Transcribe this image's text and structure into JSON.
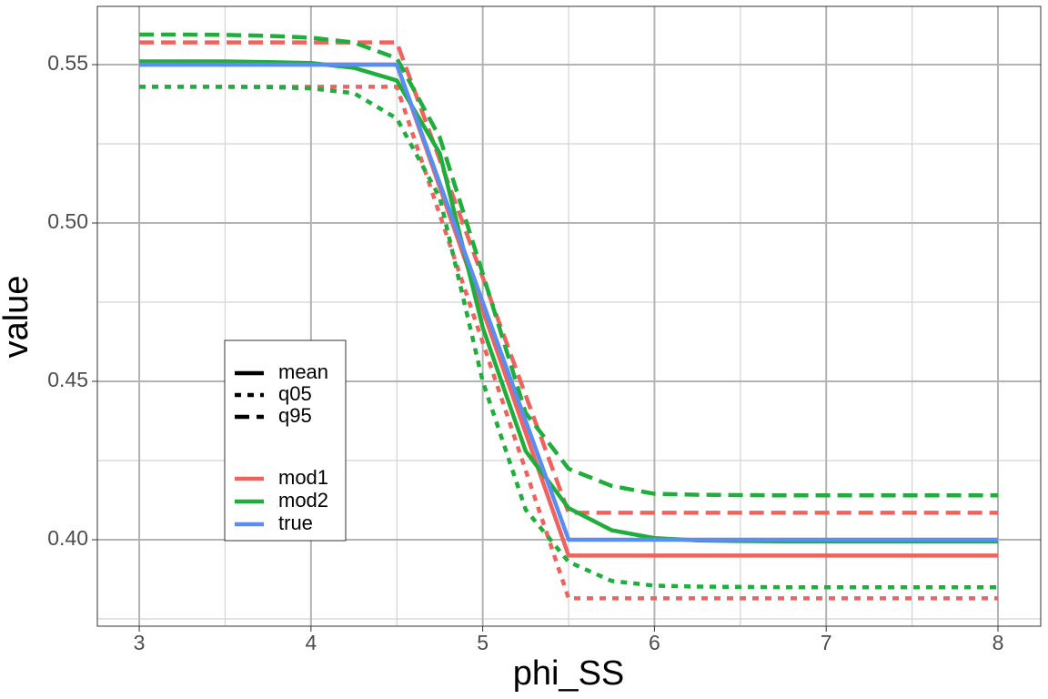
{
  "chart_data": {
    "type": "line",
    "x_label": "phi_SS",
    "y_label": "value",
    "x": [
      3,
      3.25,
      3.5,
      3.75,
      4,
      4.25,
      4.5,
      4.75,
      5,
      5.25,
      5.5,
      5.75,
      6,
      6.25,
      6.5,
      6.75,
      7,
      7.25,
      7.5,
      7.75,
      8
    ],
    "xlim": [
      2.756,
      8.249
    ],
    "ylim": [
      0.3727,
      0.5684
    ],
    "xticks": [
      3,
      4,
      5,
      6,
      7,
      8
    ],
    "yticks": [
      {
        "value": 0.4,
        "label": "0.40"
      },
      {
        "value": 0.45,
        "label": "0.45"
      },
      {
        "value": 0.5,
        "label": "0.50"
      },
      {
        "value": 0.55,
        "label": "0.55"
      }
    ],
    "grid": true,
    "legend": {
      "linetype": [
        {
          "name": "mean",
          "dash": "solid"
        },
        {
          "name": "q05",
          "dash": "dotted"
        },
        {
          "name": "q95",
          "dash": "dashed"
        }
      ],
      "color": [
        {
          "name": "mod1",
          "color": "#F0625E"
        },
        {
          "name": "mod2",
          "color": "#1FAE3B"
        },
        {
          "name": "true",
          "color": "#5A8DF2"
        }
      ]
    },
    "series": [
      {
        "name": "mod1",
        "linetype": "q95",
        "values": [
          0.557,
          0.557,
          0.557,
          0.557,
          0.557,
          0.557,
          0.557,
          0.5199,
          0.4828,
          0.4456,
          0.4085,
          0.4085,
          0.4085,
          0.4085,
          0.4085,
          0.4085,
          0.4085,
          0.4085,
          0.4085,
          0.4085,
          0.4085
        ]
      },
      {
        "name": "mod1",
        "linetype": "q05",
        "values": [
          0.543,
          0.543,
          0.543,
          0.543,
          0.543,
          0.543,
          0.543,
          0.5026,
          0.4623,
          0.4219,
          0.3815,
          0.3815,
          0.3815,
          0.3815,
          0.3815,
          0.3815,
          0.3815,
          0.3815,
          0.3815,
          0.3815,
          0.3815
        ]
      },
      {
        "name": "mod1",
        "linetype": "mean",
        "values": [
          0.55,
          0.55,
          0.55,
          0.55,
          0.55,
          0.55,
          0.55,
          0.51125,
          0.4725,
          0.43375,
          0.395,
          0.395,
          0.395,
          0.395,
          0.395,
          0.395,
          0.395,
          0.395,
          0.395,
          0.395,
          0.395
        ]
      },
      {
        "name": "mod2",
        "linetype": "q95",
        "values": [
          0.5595,
          0.5595,
          0.5594,
          0.5591,
          0.5585,
          0.557,
          0.552,
          0.527,
          0.484,
          0.44,
          0.4224,
          0.417,
          0.4145,
          0.4142,
          0.4141,
          0.414,
          0.414,
          0.414,
          0.414,
          0.414,
          0.414
        ]
      },
      {
        "name": "mod2",
        "linetype": "q05",
        "values": [
          0.543,
          0.543,
          0.543,
          0.5429,
          0.5425,
          0.541,
          0.533,
          0.508,
          0.45,
          0.4095,
          0.393,
          0.387,
          0.3855,
          0.3852,
          0.3851,
          0.385,
          0.385,
          0.385,
          0.385,
          0.385,
          0.385
        ]
      },
      {
        "name": "mod2",
        "linetype": "mean",
        "values": [
          0.551,
          0.551,
          0.551,
          0.5508,
          0.5505,
          0.549,
          0.545,
          0.522,
          0.467,
          0.428,
          0.41,
          0.403,
          0.4005,
          0.3998,
          0.3996,
          0.3995,
          0.3995,
          0.3995,
          0.3995,
          0.3995,
          0.3995
        ]
      },
      {
        "name": "true",
        "linetype": "mean",
        "values": [
          0.55,
          0.55,
          0.55,
          0.55,
          0.55,
          0.55,
          0.55,
          0.5125,
          0.475,
          0.4375,
          0.4,
          0.4,
          0.4,
          0.4,
          0.4,
          0.4,
          0.4,
          0.4,
          0.4,
          0.4,
          0.4
        ]
      }
    ]
  }
}
